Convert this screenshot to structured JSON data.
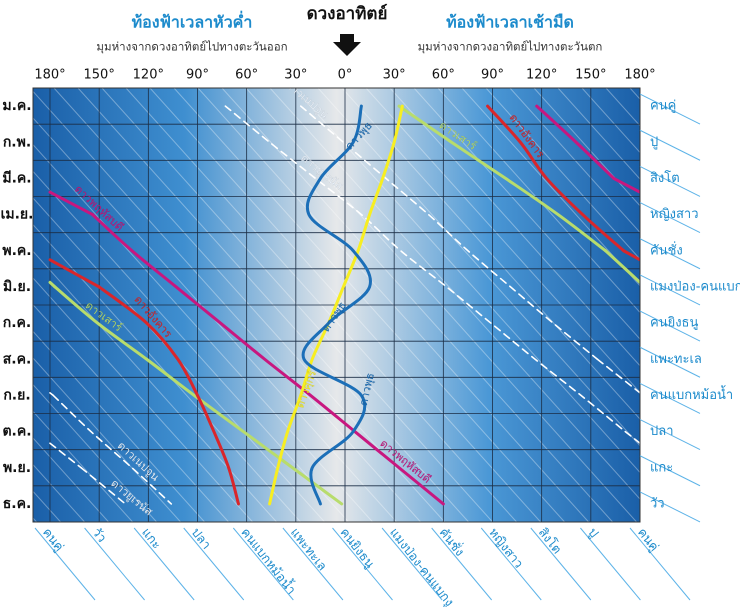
{
  "chart_data": {
    "type": "line",
    "title": "ดวงอาทิตย์",
    "left_heading": "ท้องฟ้าเวลาหัวค่ำ",
    "left_subheading": "มุมห่างจากดวงอาทิตย์ไปทางตะวันออก",
    "right_heading": "ท้องฟ้าเวลาเช้ามืด",
    "right_subheading": "มุมห่างจากดวงอาทิตย์ไปทางตะวันตก",
    "xlim": [
      -180,
      180
    ],
    "xticks": [
      {
        "value": -180,
        "label": "180°"
      },
      {
        "value": -150,
        "label": "150°"
      },
      {
        "value": -120,
        "label": "120°"
      },
      {
        "value": -90,
        "label": "90°"
      },
      {
        "value": -60,
        "label": "60°"
      },
      {
        "value": -30,
        "label": "30°"
      },
      {
        "value": 0,
        "label": "0°"
      },
      {
        "value": 30,
        "label": "30°"
      },
      {
        "value": 60,
        "label": "60°"
      },
      {
        "value": 90,
        "label": "90°"
      },
      {
        "value": 120,
        "label": "120°"
      },
      {
        "value": 150,
        "label": "150°"
      },
      {
        "value": 180,
        "label": "180°"
      }
    ],
    "categories": [
      "ม.ค.",
      "ก.พ.",
      "มี.ค.",
      "เม.ย.",
      "พ.ค.",
      "มิ.ย.",
      "ก.ค.",
      "ส.ค.",
      "ก.ย.",
      "ต.ค.",
      "พ.ย.",
      "ธ.ค."
    ],
    "right_labels": [
      "คนคู่",
      "ปู",
      "สิงโต",
      "หญิงสาว",
      "คันชั่ง",
      "แมงป่อง-คนแบกงู",
      "คนยิงธนู",
      "แพะทะเล",
      "คนแบกหม้อน้ำ",
      "ปลา",
      "แกะ",
      "วัว"
    ],
    "bottom_labels": [
      "คนคู่",
      "วัว",
      "แกะ",
      "ปลา",
      "คนแบกหม้อน้ำ",
      "แพะทะเล",
      "คนยิงธนู",
      "แมงป่อง-คนแบกงู",
      "คันชั่ง",
      "หญิงสาว",
      "สิงโต",
      "ปู",
      "คนคู่"
    ],
    "series": [
      {
        "name": "ดาวยูเรนัส",
        "color": "#ffffff",
        "style": "dashed",
        "values": [
          -73,
          -46,
          -18,
          10,
          34,
          62,
          89,
          116,
          144,
          171,
          -161,
          -134
        ]
      },
      {
        "name": "ดาวเนปจูน",
        "color": "#ffffff",
        "style": "dashed",
        "values": [
          -27,
          -1,
          25,
          51,
          75,
          101,
          127,
          154,
          -178,
          -155,
          -130,
          -106
        ]
      },
      {
        "name": "ดาวเสาร์",
        "color": "#b8dc6c",
        "style": "solid",
        "values": [
          33,
          65,
          98,
          130,
          159,
          -177,
          -151,
          -121,
          -92,
          -62,
          -32,
          -2
        ]
      },
      {
        "name": "ดาวอังคาร",
        "color": "#d9262b",
        "style": "solid",
        "values": [
          87,
          107,
          123,
          145,
          170,
          -150,
          -121,
          -102,
          -90,
          -80,
          -71,
          -65
        ]
      },
      {
        "name": "ดาวพฤหัสบดี",
        "color": "#c8177f",
        "style": "solid",
        "values": [
          117,
          141,
          164,
          -154,
          -130,
          -103,
          -76,
          -49,
          -21,
          6,
          33,
          60
        ]
      },
      {
        "name": "ดาวศุกร์",
        "color": "#f7ee22",
        "style": "solid",
        "values": [
          35,
          30,
          23,
          15,
          8,
          -1,
          -10,
          -20,
          -27,
          -35,
          -41,
          -46
        ]
      },
      {
        "name": "ดาวพุธ",
        "color": "#1c6fb8",
        "style": "solid",
        "values": [
          10,
          5,
          -15,
          -22,
          5,
          15,
          -10,
          -25,
          10,
          5,
          -20,
          -15
        ]
      }
    ]
  }
}
